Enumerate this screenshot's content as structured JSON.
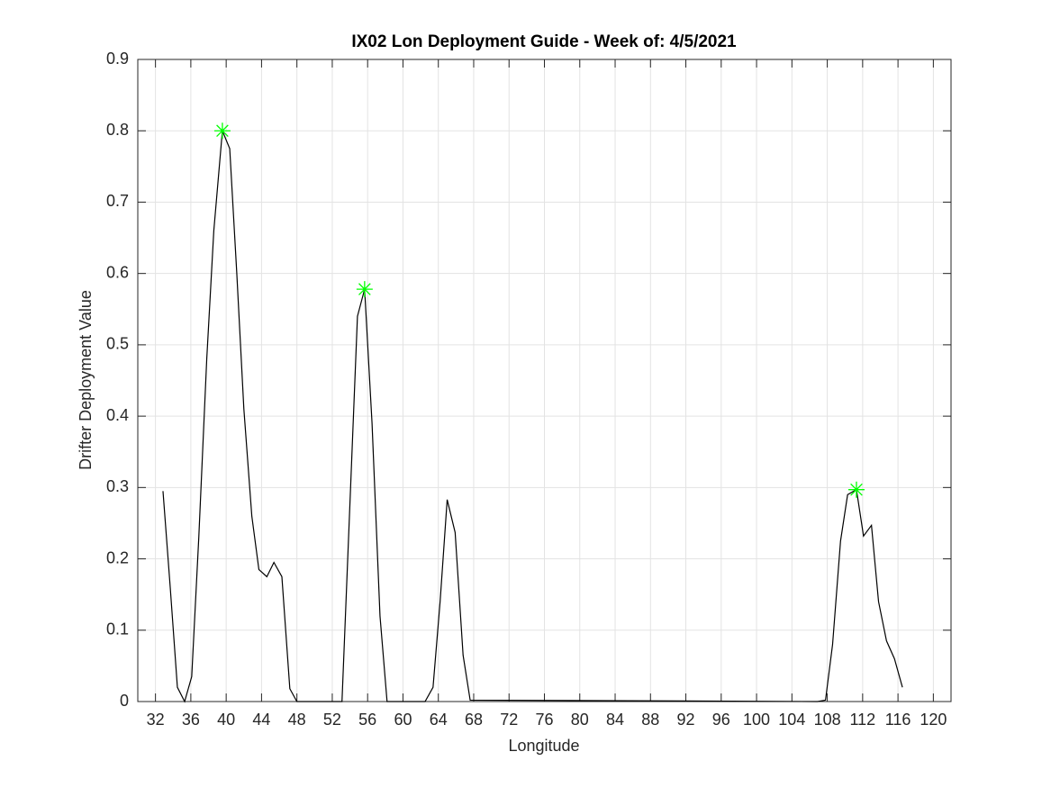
{
  "chart_data": {
    "type": "line",
    "title": "IX02 Lon Deployment Guide - Week of: 4/5/2021",
    "x_label": "Longitude",
    "y_label": "Drifter Deployment Value",
    "x": [
      32.85,
      33.67,
      34.48,
      35.3,
      36.1,
      36.9,
      37.8,
      38.6,
      39.57,
      40.4,
      41.2,
      42.0,
      42.9,
      43.7,
      44.6,
      45.4,
      46.3,
      47.2,
      48.0,
      53.1,
      54.85,
      55.66,
      56.5,
      57.4,
      58.2,
      62.5,
      63.4,
      64.2,
      65.0,
      65.9,
      66.8,
      67.6,
      106.9,
      107.8,
      108.6,
      109.5,
      110.3,
      111.3,
      112.1,
      113.0,
      113.8,
      114.7,
      115.6,
      116.5
    ],
    "series": [
      {
        "color": "#000000",
        "values": [
          0.295,
          0.16,
          0.02,
          0.0,
          0.035,
          0.23,
          0.48,
          0.66,
          0.8,
          0.775,
          0.6,
          0.41,
          0.26,
          0.185,
          0.175,
          0.195,
          0.175,
          0.018,
          0.0,
          0.0,
          0.54,
          0.578,
          0.39,
          0.12,
          0.0,
          0.0,
          0.02,
          0.14,
          0.283,
          0.237,
          0.065,
          0.002,
          0.0,
          0.002,
          0.08,
          0.225,
          0.29,
          0.297,
          0.232,
          0.247,
          0.14,
          0.085,
          0.06,
          0.02
        ]
      }
    ],
    "markers": {
      "color": "#00ff00",
      "x": [
        39.57,
        55.66,
        111.3
      ],
      "y": [
        0.8,
        0.578,
        0.297
      ]
    },
    "xlim": [
      30,
      122
    ],
    "ylim": [
      0,
      0.9
    ],
    "xticks": [
      32,
      36,
      40,
      44,
      48,
      52,
      56,
      60,
      64,
      68,
      72,
      76,
      80,
      84,
      88,
      92,
      96,
      100,
      104,
      108,
      112,
      116,
      120
    ],
    "yticks": [
      0,
      0.1,
      0.2,
      0.3,
      0.4,
      0.5,
      0.6,
      0.7,
      0.8,
      0.9
    ],
    "grid": true
  }
}
